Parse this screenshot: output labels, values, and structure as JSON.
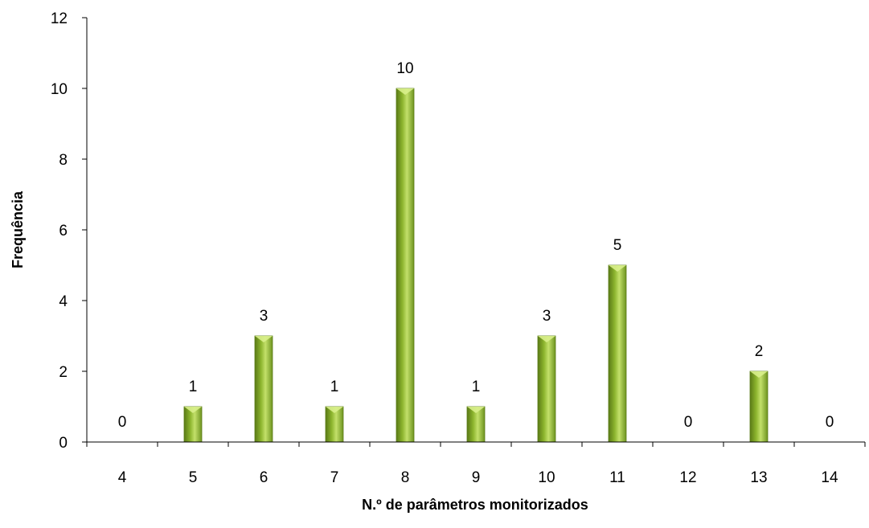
{
  "chart_data": {
    "type": "bar",
    "title": "",
    "xlabel": "N.º de parâmetros monitorizados",
    "ylabel": "Frequência",
    "categories": [
      "4",
      "5",
      "6",
      "7",
      "8",
      "9",
      "10",
      "11",
      "12",
      "13",
      "14"
    ],
    "values": [
      0,
      1,
      3,
      1,
      10,
      1,
      3,
      5,
      0,
      2,
      0
    ],
    "ylim": [
      0,
      12
    ],
    "yticks": [
      0,
      2,
      4,
      6,
      8,
      10,
      12
    ],
    "grid": false,
    "legend": "none",
    "show_data_labels": true,
    "colors": {
      "bar_light": "#c3e06a",
      "bar_mid": "#8db52e",
      "bar_dark": "#5a7a16",
      "bar_cap": "#d9f08c",
      "axis": "#000000"
    }
  }
}
